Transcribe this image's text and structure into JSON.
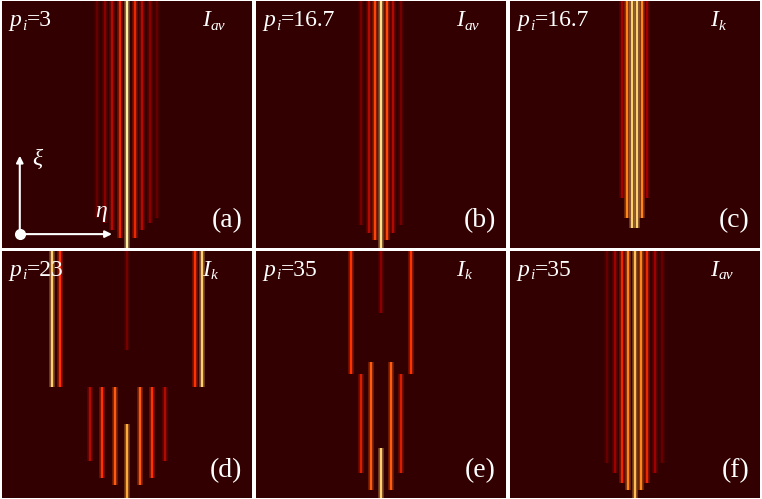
{
  "chart_data": [
    {
      "type": "heatmap",
      "panel": "(a)",
      "parameter": {
        "symbol": "p",
        "subscript": "i",
        "sign": "=",
        "value": 3
      },
      "quantity": {
        "symbol": "I",
        "subscript": "av"
      },
      "axis_labels": {
        "x": "η",
        "y": "ξ"
      },
      "xlim": [
        0,
        1
      ],
      "ylim": [
        0,
        1
      ],
      "tick_labels": false,
      "intensity_range": [
        0,
        1
      ],
      "filaments": [
        {
          "eta": 0.5,
          "xi_start": 0.0,
          "xi_end": 1.0,
          "intensity": 1.0
        },
        {
          "eta": 0.47,
          "xi_start": 0.04,
          "xi_end": 1.0,
          "intensity": 0.45
        },
        {
          "eta": 0.53,
          "xi_start": 0.04,
          "xi_end": 1.0,
          "intensity": 0.45
        },
        {
          "eta": 0.44,
          "xi_start": 0.07,
          "xi_end": 1.0,
          "intensity": 0.3
        },
        {
          "eta": 0.56,
          "xi_start": 0.07,
          "xi_end": 1.0,
          "intensity": 0.3
        },
        {
          "eta": 0.41,
          "xi_start": 0.1,
          "xi_end": 1.0,
          "intensity": 0.2
        },
        {
          "eta": 0.59,
          "xi_start": 0.1,
          "xi_end": 1.0,
          "intensity": 0.2
        },
        {
          "eta": 0.38,
          "xi_start": 0.12,
          "xi_end": 1.0,
          "intensity": 0.12
        },
        {
          "eta": 0.62,
          "xi_start": 0.12,
          "xi_end": 1.0,
          "intensity": 0.12
        }
      ]
    },
    {
      "type": "heatmap",
      "panel": "(b)",
      "parameter": {
        "symbol": "p",
        "subscript": "i",
        "sign": "=",
        "value": 16.7
      },
      "quantity": {
        "symbol": "I",
        "subscript": "av"
      },
      "xlim": [
        0,
        1
      ],
      "ylim": [
        0,
        1
      ],
      "tick_labels": false,
      "intensity_range": [
        0,
        1
      ],
      "filaments": [
        {
          "eta": 0.5,
          "xi_start": 0.0,
          "xi_end": 1.0,
          "intensity": 0.95
        },
        {
          "eta": 0.475,
          "xi_start": 0.03,
          "xi_end": 1.0,
          "intensity": 0.55
        },
        {
          "eta": 0.525,
          "xi_start": 0.03,
          "xi_end": 1.0,
          "intensity": 0.55
        },
        {
          "eta": 0.45,
          "xi_start": 0.06,
          "xi_end": 1.0,
          "intensity": 0.3
        },
        {
          "eta": 0.55,
          "xi_start": 0.06,
          "xi_end": 1.0,
          "intensity": 0.3
        },
        {
          "eta": 0.42,
          "xi_start": 0.09,
          "xi_end": 1.0,
          "intensity": 0.15
        },
        {
          "eta": 0.58,
          "xi_start": 0.09,
          "xi_end": 1.0,
          "intensity": 0.15
        }
      ]
    },
    {
      "type": "heatmap",
      "panel": "(c)",
      "parameter": {
        "symbol": "p",
        "subscript": "i",
        "sign": "=",
        "value": 16.7
      },
      "quantity": {
        "symbol": "I",
        "subscript": "k"
      },
      "xlim": [
        0,
        1
      ],
      "ylim": [
        0,
        1
      ],
      "tick_labels": false,
      "intensity_range": [
        0,
        1
      ],
      "filaments": [
        {
          "eta": 0.47,
          "xi_start": 0.12,
          "xi_end": 1.0,
          "intensity": 0.7
        },
        {
          "eta": 0.49,
          "xi_start": 0.08,
          "xi_end": 1.0,
          "intensity": 0.9
        },
        {
          "eta": 0.51,
          "xi_start": 0.08,
          "xi_end": 1.0,
          "intensity": 0.9
        },
        {
          "eta": 0.53,
          "xi_start": 0.12,
          "xi_end": 1.0,
          "intensity": 0.7
        },
        {
          "eta": 0.45,
          "xi_start": 0.2,
          "xi_end": 1.0,
          "intensity": 0.25
        },
        {
          "eta": 0.55,
          "xi_start": 0.2,
          "xi_end": 1.0,
          "intensity": 0.25
        }
      ]
    },
    {
      "type": "heatmap",
      "panel": "(d)",
      "parameter": {
        "symbol": "p",
        "subscript": "i",
        "sign": "=",
        "value": 23
      },
      "quantity": {
        "symbol": "I",
        "subscript": "k"
      },
      "xlim": [
        0,
        1
      ],
      "ylim": [
        0,
        1
      ],
      "tick_labels": false,
      "intensity_range": [
        0,
        1
      ],
      "filaments": [
        {
          "eta": 0.5,
          "xi_start": 0.0,
          "xi_end": 0.3,
          "intensity": 0.8
        },
        {
          "eta": 0.45,
          "xi_start": 0.05,
          "xi_end": 0.45,
          "intensity": 0.6
        },
        {
          "eta": 0.55,
          "xi_start": 0.05,
          "xi_end": 0.45,
          "intensity": 0.6
        },
        {
          "eta": 0.4,
          "xi_start": 0.08,
          "xi_end": 0.45,
          "intensity": 0.5
        },
        {
          "eta": 0.6,
          "xi_start": 0.08,
          "xi_end": 0.45,
          "intensity": 0.5
        },
        {
          "eta": 0.35,
          "xi_start": 0.15,
          "xi_end": 0.45,
          "intensity": 0.3
        },
        {
          "eta": 0.65,
          "xi_start": 0.15,
          "xi_end": 0.45,
          "intensity": 0.3
        },
        {
          "eta": 0.2,
          "xi_start": 0.45,
          "xi_end": 1.0,
          "intensity": 0.9
        },
        {
          "eta": 0.23,
          "xi_start": 0.45,
          "xi_end": 1.0,
          "intensity": 0.5
        },
        {
          "eta": 0.8,
          "xi_start": 0.45,
          "xi_end": 1.0,
          "intensity": 0.9
        },
        {
          "eta": 0.77,
          "xi_start": 0.45,
          "xi_end": 1.0,
          "intensity": 0.5
        },
        {
          "eta": 0.5,
          "xi_start": 0.6,
          "xi_end": 1.0,
          "intensity": 0.15
        }
      ]
    },
    {
      "type": "heatmap",
      "panel": "(e)",
      "parameter": {
        "symbol": "p",
        "subscript": "i",
        "sign": "=",
        "value": 35
      },
      "quantity": {
        "symbol": "I",
        "subscript": "k"
      },
      "xlim": [
        0,
        1
      ],
      "ylim": [
        0,
        1
      ],
      "tick_labels": false,
      "intensity_range": [
        0,
        1
      ],
      "filaments": [
        {
          "eta": 0.5,
          "xi_start": 0.0,
          "xi_end": 0.2,
          "intensity": 0.9
        },
        {
          "eta": 0.46,
          "xi_start": 0.03,
          "xi_end": 0.55,
          "intensity": 0.6
        },
        {
          "eta": 0.54,
          "xi_start": 0.03,
          "xi_end": 0.55,
          "intensity": 0.6
        },
        {
          "eta": 0.42,
          "xi_start": 0.1,
          "xi_end": 0.5,
          "intensity": 0.4
        },
        {
          "eta": 0.58,
          "xi_start": 0.1,
          "xi_end": 0.5,
          "intensity": 0.4
        },
        {
          "eta": 0.38,
          "xi_start": 0.5,
          "xi_end": 1.0,
          "intensity": 0.5
        },
        {
          "eta": 0.62,
          "xi_start": 0.5,
          "xi_end": 1.0,
          "intensity": 0.5
        },
        {
          "eta": 0.5,
          "xi_start": 0.75,
          "xi_end": 1.0,
          "intensity": 0.2
        }
      ]
    },
    {
      "type": "heatmap",
      "panel": "(f)",
      "parameter": {
        "symbol": "p",
        "subscript": "i",
        "sign": "=",
        "value": 35
      },
      "quantity": {
        "symbol": "I",
        "subscript": "av"
      },
      "xlim": [
        0,
        1
      ],
      "ylim": [
        0,
        1
      ],
      "tick_labels": false,
      "intensity_range": [
        0,
        1
      ],
      "filaments": [
        {
          "eta": 0.5,
          "xi_start": 0.0,
          "xi_end": 1.0,
          "intensity": 0.85
        },
        {
          "eta": 0.475,
          "xi_start": 0.03,
          "xi_end": 1.0,
          "intensity": 0.7
        },
        {
          "eta": 0.525,
          "xi_start": 0.03,
          "xi_end": 1.0,
          "intensity": 0.7
        },
        {
          "eta": 0.45,
          "xi_start": 0.06,
          "xi_end": 1.0,
          "intensity": 0.45
        },
        {
          "eta": 0.55,
          "xi_start": 0.06,
          "xi_end": 1.0,
          "intensity": 0.45
        },
        {
          "eta": 0.42,
          "xi_start": 0.1,
          "xi_end": 1.0,
          "intensity": 0.25
        },
        {
          "eta": 0.58,
          "xi_start": 0.1,
          "xi_end": 1.0,
          "intensity": 0.25
        },
        {
          "eta": 0.39,
          "xi_start": 0.14,
          "xi_end": 1.0,
          "intensity": 0.12
        },
        {
          "eta": 0.61,
          "xi_start": 0.14,
          "xi_end": 1.0,
          "intensity": 0.12
        }
      ]
    }
  ]
}
